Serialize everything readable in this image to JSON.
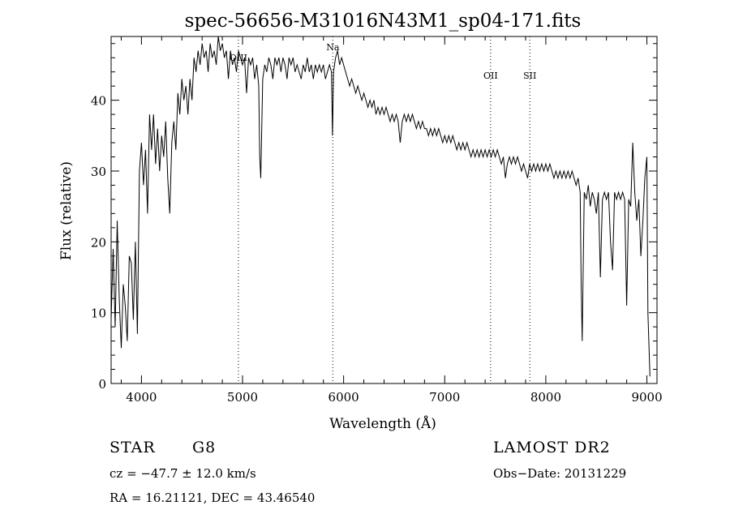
{
  "chart_data": {
    "type": "line",
    "title": "spec-56656-M31016N43M1_sp04-171.fits",
    "xlabel": "Wavelength (Å)",
    "ylabel": "Flux (relative)",
    "xlim": [
      3700,
      9100
    ],
    "ylim": [
      0,
      49
    ],
    "x_ticks": [
      4000,
      5000,
      6000,
      7000,
      8000,
      9000
    ],
    "y_ticks": [
      0,
      10,
      20,
      30,
      40
    ],
    "grid": false,
    "line_color": "#000000",
    "series": [
      {
        "points": [
          [
            3700,
            9
          ],
          [
            3720,
            19
          ],
          [
            3740,
            8
          ],
          [
            3760,
            23
          ],
          [
            3780,
            12
          ],
          [
            3800,
            5
          ],
          [
            3820,
            14
          ],
          [
            3840,
            11
          ],
          [
            3860,
            6
          ],
          [
            3880,
            18
          ],
          [
            3900,
            17
          ],
          [
            3920,
            9
          ],
          [
            3940,
            20
          ],
          [
            3960,
            7
          ],
          [
            3980,
            30
          ],
          [
            4000,
            34
          ],
          [
            4020,
            28
          ],
          [
            4040,
            33
          ],
          [
            4060,
            24
          ],
          [
            4080,
            38
          ],
          [
            4100,
            33
          ],
          [
            4120,
            38
          ],
          [
            4140,
            31
          ],
          [
            4160,
            36
          ],
          [
            4180,
            30
          ],
          [
            4200,
            35
          ],
          [
            4220,
            32
          ],
          [
            4240,
            37
          ],
          [
            4260,
            29
          ],
          [
            4280,
            24
          ],
          [
            4300,
            34
          ],
          [
            4320,
            37
          ],
          [
            4340,
            33
          ],
          [
            4360,
            41
          ],
          [
            4380,
            38
          ],
          [
            4400,
            43
          ],
          [
            4420,
            40
          ],
          [
            4440,
            42
          ],
          [
            4460,
            38
          ],
          [
            4480,
            43
          ],
          [
            4500,
            40
          ],
          [
            4520,
            46
          ],
          [
            4540,
            44
          ],
          [
            4560,
            47
          ],
          [
            4580,
            45
          ],
          [
            4600,
            48
          ],
          [
            4620,
            46
          ],
          [
            4640,
            47
          ],
          [
            4660,
            44
          ],
          [
            4680,
            48
          ],
          [
            4700,
            46
          ],
          [
            4720,
            47
          ],
          [
            4740,
            45
          ],
          [
            4760,
            49
          ],
          [
            4780,
            47
          ],
          [
            4800,
            48
          ],
          [
            4820,
            46
          ],
          [
            4840,
            47
          ],
          [
            4860,
            43
          ],
          [
            4880,
            47
          ],
          [
            4900,
            45
          ],
          [
            4920,
            46
          ],
          [
            4940,
            44
          ],
          [
            4960,
            47
          ],
          [
            4980,
            46
          ],
          [
            5000,
            45
          ],
          [
            5020,
            46
          ],
          [
            5040,
            41
          ],
          [
            5060,
            46
          ],
          [
            5080,
            45
          ],
          [
            5100,
            46
          ],
          [
            5120,
            43
          ],
          [
            5140,
            45
          ],
          [
            5160,
            42
          ],
          [
            5170,
            32
          ],
          [
            5180,
            29
          ],
          [
            5200,
            43
          ],
          [
            5220,
            45
          ],
          [
            5240,
            44
          ],
          [
            5260,
            46
          ],
          [
            5280,
            45
          ],
          [
            5300,
            43
          ],
          [
            5320,
            46
          ],
          [
            5340,
            45
          ],
          [
            5360,
            46
          ],
          [
            5380,
            44
          ],
          [
            5400,
            46
          ],
          [
            5420,
            45
          ],
          [
            5440,
            43
          ],
          [
            5460,
            46
          ],
          [
            5480,
            45
          ],
          [
            5500,
            46
          ],
          [
            5520,
            44
          ],
          [
            5540,
            45
          ],
          [
            5560,
            44
          ],
          [
            5580,
            43
          ],
          [
            5600,
            45
          ],
          [
            5620,
            44
          ],
          [
            5640,
            46
          ],
          [
            5660,
            44
          ],
          [
            5680,
            45
          ],
          [
            5700,
            43
          ],
          [
            5720,
            45
          ],
          [
            5740,
            44
          ],
          [
            5760,
            45
          ],
          [
            5780,
            44
          ],
          [
            5800,
            45
          ],
          [
            5820,
            43
          ],
          [
            5840,
            44
          ],
          [
            5860,
            45
          ],
          [
            5880,
            44
          ],
          [
            5890,
            35
          ],
          [
            5900,
            44
          ],
          [
            5920,
            46
          ],
          [
            5940,
            47
          ],
          [
            5960,
            45
          ],
          [
            5980,
            46
          ],
          [
            6000,
            45
          ],
          [
            6020,
            44
          ],
          [
            6040,
            43
          ],
          [
            6060,
            42
          ],
          [
            6080,
            43
          ],
          [
            6100,
            42
          ],
          [
            6120,
            41
          ],
          [
            6140,
            42
          ],
          [
            6160,
            41
          ],
          [
            6180,
            40
          ],
          [
            6200,
            41
          ],
          [
            6220,
            40
          ],
          [
            6240,
            39
          ],
          [
            6260,
            40
          ],
          [
            6280,
            39
          ],
          [
            6300,
            40
          ],
          [
            6320,
            38
          ],
          [
            6340,
            39
          ],
          [
            6360,
            38
          ],
          [
            6380,
            39
          ],
          [
            6400,
            38
          ],
          [
            6420,
            39
          ],
          [
            6440,
            38
          ],
          [
            6460,
            37
          ],
          [
            6480,
            38
          ],
          [
            6500,
            37
          ],
          [
            6520,
            38
          ],
          [
            6540,
            37
          ],
          [
            6560,
            34
          ],
          [
            6580,
            37
          ],
          [
            6600,
            38
          ],
          [
            6620,
            37
          ],
          [
            6640,
            38
          ],
          [
            6660,
            37
          ],
          [
            6680,
            38
          ],
          [
            6700,
            37
          ],
          [
            6720,
            36
          ],
          [
            6740,
            37
          ],
          [
            6760,
            36
          ],
          [
            6780,
            37
          ],
          [
            6800,
            36
          ],
          [
            6820,
            36
          ],
          [
            6840,
            35
          ],
          [
            6860,
            36
          ],
          [
            6880,
            35
          ],
          [
            6900,
            36
          ],
          [
            6920,
            35
          ],
          [
            6940,
            36
          ],
          [
            6960,
            35
          ],
          [
            6980,
            34
          ],
          [
            7000,
            35
          ],
          [
            7020,
            34
          ],
          [
            7040,
            35
          ],
          [
            7060,
            34
          ],
          [
            7080,
            35
          ],
          [
            7100,
            34
          ],
          [
            7120,
            33
          ],
          [
            7140,
            34
          ],
          [
            7160,
            33
          ],
          [
            7180,
            34
          ],
          [
            7200,
            33
          ],
          [
            7220,
            34
          ],
          [
            7240,
            33
          ],
          [
            7260,
            32
          ],
          [
            7280,
            33
          ],
          [
            7300,
            32
          ],
          [
            7320,
            33
          ],
          [
            7340,
            32
          ],
          [
            7360,
            33
          ],
          [
            7380,
            32
          ],
          [
            7400,
            33
          ],
          [
            7420,
            32
          ],
          [
            7440,
            33
          ],
          [
            7460,
            32
          ],
          [
            7480,
            33
          ],
          [
            7500,
            32
          ],
          [
            7520,
            33
          ],
          [
            7540,
            32
          ],
          [
            7560,
            31
          ],
          [
            7580,
            32
          ],
          [
            7600,
            29
          ],
          [
            7620,
            31
          ],
          [
            7640,
            32
          ],
          [
            7660,
            31
          ],
          [
            7680,
            32
          ],
          [
            7700,
            31
          ],
          [
            7720,
            32
          ],
          [
            7740,
            31
          ],
          [
            7760,
            30
          ],
          [
            7780,
            31
          ],
          [
            7800,
            30
          ],
          [
            7820,
            29
          ],
          [
            7840,
            31
          ],
          [
            7860,
            30
          ],
          [
            7880,
            31
          ],
          [
            7900,
            30
          ],
          [
            7920,
            31
          ],
          [
            7940,
            30
          ],
          [
            7960,
            31
          ],
          [
            7980,
            30
          ],
          [
            8000,
            31
          ],
          [
            8020,
            30
          ],
          [
            8040,
            31
          ],
          [
            8060,
            30
          ],
          [
            8080,
            29
          ],
          [
            8100,
            30
          ],
          [
            8120,
            29
          ],
          [
            8140,
            30
          ],
          [
            8160,
            29
          ],
          [
            8180,
            30
          ],
          [
            8200,
            29
          ],
          [
            8220,
            30
          ],
          [
            8240,
            29
          ],
          [
            8260,
            30
          ],
          [
            8280,
            29
          ],
          [
            8300,
            28
          ],
          [
            8320,
            29
          ],
          [
            8340,
            27
          ],
          [
            8350,
            14
          ],
          [
            8360,
            6
          ],
          [
            8380,
            27
          ],
          [
            8400,
            26
          ],
          [
            8420,
            28
          ],
          [
            8440,
            25
          ],
          [
            8460,
            27
          ],
          [
            8480,
            26
          ],
          [
            8500,
            24
          ],
          [
            8520,
            27
          ],
          [
            8540,
            15
          ],
          [
            8560,
            26
          ],
          [
            8580,
            27
          ],
          [
            8600,
            26
          ],
          [
            8620,
            27
          ],
          [
            8640,
            20
          ],
          [
            8660,
            16
          ],
          [
            8680,
            27
          ],
          [
            8700,
            26
          ],
          [
            8720,
            27
          ],
          [
            8740,
            26
          ],
          [
            8760,
            27
          ],
          [
            8780,
            26
          ],
          [
            8800,
            11
          ],
          [
            8820,
            26
          ],
          [
            8840,
            25
          ],
          [
            8860,
            34
          ],
          [
            8880,
            27
          ],
          [
            8900,
            23
          ],
          [
            8920,
            26
          ],
          [
            8940,
            18
          ],
          [
            8960,
            23
          ],
          [
            8980,
            29
          ],
          [
            9000,
            32
          ],
          [
            9010,
            10
          ],
          [
            9030,
            1
          ]
        ]
      }
    ],
    "annotations": [
      {
        "label": "OIII",
        "x": 4959
      },
      {
        "label": "Na",
        "x": 5893
      },
      {
        "label": "OII",
        "x": 7454
      },
      {
        "label": "SII",
        "x": 7842
      }
    ]
  },
  "footer": {
    "object_class": "STAR",
    "subclass": "G8",
    "survey": "LAMOST DR2",
    "redshift": "cz = −47.7 ± 12.0 km/s",
    "obs_date": "Obs−Date: 20131229",
    "coords": "RA =  16.21121, DEC =  43.46540"
  }
}
